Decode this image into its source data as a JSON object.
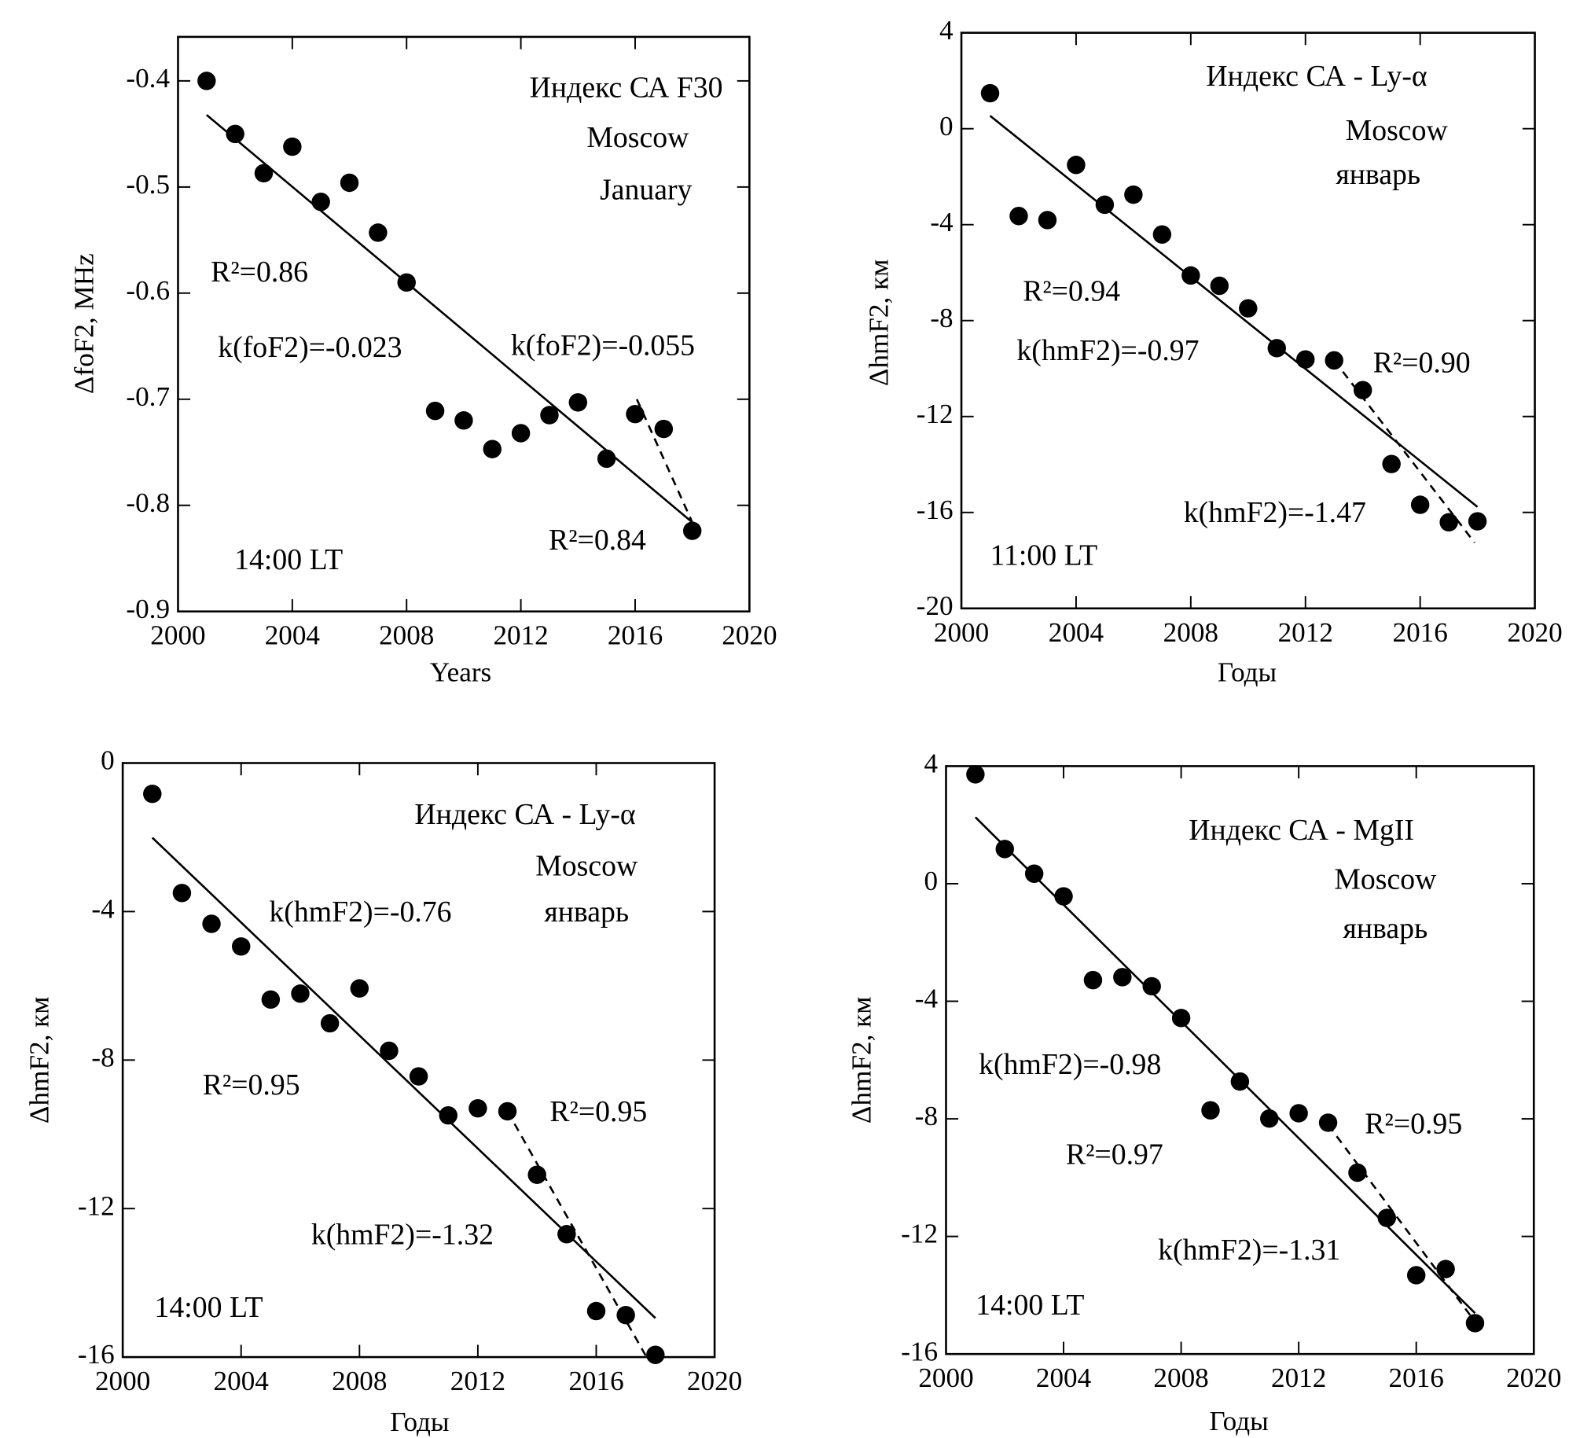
{
  "chart_data": [
    {
      "type": "scatter",
      "x_label": "Years",
      "y_label": "ΔfoF2, MHz",
      "color": "#000000",
      "annotations": [
        "Индекс СА F30",
        "Moscow",
        "January",
        "R²=0.86",
        "k(foF2)=-0.023",
        "k(foF2)=-0.055",
        "R²=0.84",
        "14:00 LT"
      ],
      "x": [
        2001,
        2002,
        2003,
        2004,
        2005,
        2006,
        2007,
        2008,
        2009,
        2010,
        2011,
        2012,
        2013,
        2014,
        2015,
        2016,
        2017,
        2018
      ],
      "values": [
        -0.4,
        -0.45,
        -0.487,
        -0.462,
        -0.514,
        -0.496,
        -0.543,
        -0.59,
        -0.711,
        -0.72,
        -0.747,
        -0.732,
        -0.715,
        -0.703,
        -0.756,
        -0.714,
        -0.728,
        -0.824
      ],
      "fit_lines": [
        {
          "x": [
            2001,
            2018
          ],
          "values": [
            -0.432,
            -0.816
          ],
          "style": "solid"
        },
        {
          "x": [
            2016.06,
            2018
          ],
          "values": [
            -0.7,
            -0.816
          ],
          "style": "dashed"
        }
      ],
      "xlim": [
        2000,
        2020
      ],
      "ylim": [
        -0.9,
        -0.3585
      ],
      "xticks": [
        2000,
        2004,
        2008,
        2012,
        2016,
        2020
      ],
      "yticks": [
        -0.9,
        -0.8,
        -0.7,
        -0.6,
        -0.5,
        -0.4
      ]
    },
    {
      "type": "scatter",
      "x_label": "Годы",
      "y_label": "ΔhmF2, км",
      "color": "#000000",
      "annotations": [
        "Индекс СА - Ly-α",
        "Moscow",
        "январь",
        "R²=0.94",
        "k(hmF2)=-0.97",
        "R²=0.90",
        "k(hmF2)=-1.47",
        "11:00 LT"
      ],
      "x": [
        2001,
        2002,
        2003,
        2004,
        2005,
        2006,
        2007,
        2008,
        2009,
        2010,
        2011,
        2012,
        2013,
        2014,
        2015,
        2016,
        2017,
        2018
      ],
      "values": [
        1.48,
        -3.64,
        -3.81,
        -1.51,
        -3.17,
        -2.75,
        -4.41,
        -6.12,
        -6.55,
        -7.49,
        -9.15,
        -9.62,
        -9.66,
        -10.9,
        -13.98,
        -15.68,
        -16.41,
        -16.37
      ],
      "fit_lines": [
        {
          "x": [
            2001,
            2018
          ],
          "values": [
            0.54,
            -15.77
          ],
          "style": "solid"
        },
        {
          "x": [
            2013,
            2017.9
          ],
          "values": [
            -9.66,
            -17.26
          ],
          "style": "dashed"
        }
      ],
      "xlim": [
        2000,
        2020
      ],
      "ylim": [
        -20,
        4
      ],
      "xticks": [
        2000,
        2004,
        2008,
        2012,
        2016,
        2020
      ],
      "yticks": [
        -20,
        -16,
        -12,
        -8,
        -4,
        0,
        4
      ]
    },
    {
      "type": "scatter",
      "x_label": "Годы",
      "y_label": "ΔhmF2, км",
      "color": "#000000",
      "annotations": [
        "Индекс СА - Ly-α",
        "Moscow",
        "январь",
        "k(hmF2)=-0.76",
        "R²=0.95",
        "R²=0.95",
        "k(hmF2)=-1.32",
        "14:00 LT"
      ],
      "x": [
        2001,
        2002,
        2003,
        2004,
        2005,
        2006,
        2007,
        2008,
        2009,
        2010,
        2011,
        2012,
        2013,
        2014,
        2015,
        2016,
        2017,
        2018
      ],
      "values": [
        -0.83,
        -3.5,
        -4.33,
        -4.94,
        -6.37,
        -6.21,
        -7.01,
        -6.07,
        -7.75,
        -8.44,
        -9.49,
        -9.3,
        -9.38,
        -11.09,
        -12.69,
        -14.76,
        -14.87,
        -15.94
      ],
      "fit_lines": [
        {
          "x": [
            2001,
            2018
          ],
          "values": [
            -2.01,
            -14.95
          ],
          "style": "solid"
        },
        {
          "x": [
            2013,
            2017.7
          ],
          "values": [
            -9.38,
            -16
          ],
          "style": "dashed"
        }
      ],
      "xlim": [
        2000,
        2020
      ],
      "ylim": [
        -16,
        0
      ],
      "xticks": [
        2000,
        2004,
        2008,
        2012,
        2016,
        2020
      ],
      "yticks": [
        -16,
        -12,
        -8,
        -4,
        0
      ]
    },
    {
      "type": "scatter",
      "x_label": "Годы",
      "y_label": "ΔhmF2, км",
      "color": "#000000",
      "annotations": [
        "Индекс СА - MgII",
        "Moscow",
        "январь",
        "k(hmF2)=-0.98",
        "R²=0.97",
        "R²=0.95",
        "k(hmF2)=-1.31",
        "14:00 LT"
      ],
      "x": [
        2001,
        2002,
        2003,
        2004,
        2005,
        2006,
        2007,
        2008,
        2009,
        2010,
        2011,
        2012,
        2013,
        2014,
        2015,
        2016,
        2017,
        2018
      ],
      "values": [
        3.72,
        1.18,
        0.34,
        -0.43,
        -3.28,
        -3.18,
        -3.49,
        -4.57,
        -7.71,
        -6.73,
        -7.99,
        -7.81,
        -8.13,
        -9.83,
        -11.37,
        -13.32,
        -13.11,
        -14.95
      ],
      "fit_lines": [
        {
          "x": [
            2001,
            2018
          ],
          "values": [
            2.26,
            -14.61
          ],
          "style": "solid"
        },
        {
          "x": [
            2013,
            2018
          ],
          "values": [
            -8.2,
            -14.9
          ],
          "style": "dashed"
        }
      ],
      "xlim": [
        2000,
        2020
      ],
      "ylim": [
        -16,
        4
      ],
      "xticks": [
        2000,
        2004,
        2008,
        2012,
        2016,
        2020
      ],
      "yticks": [
        -16,
        -12,
        -8,
        -4,
        0,
        4
      ]
    }
  ]
}
